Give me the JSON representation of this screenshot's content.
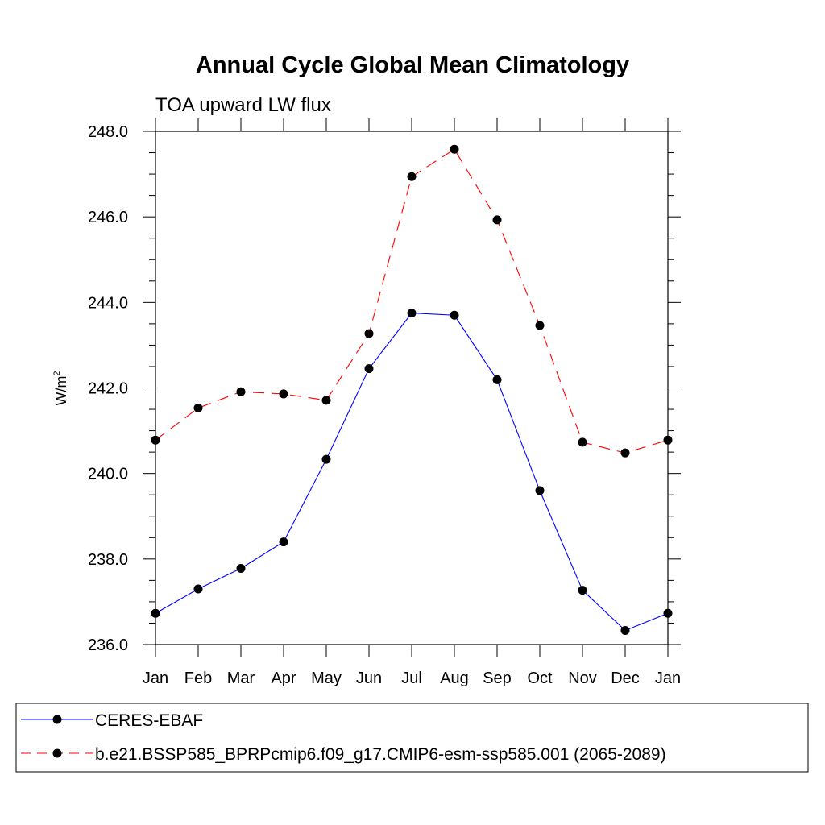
{
  "chart_data": {
    "type": "line",
    "title": "Annual Cycle Global Mean Climatology",
    "subtitle": "TOA upward LW flux",
    "ylabel": "W/m",
    "ylabel_superscript": "2",
    "categories": [
      "Jan",
      "Feb",
      "Mar",
      "Apr",
      "May",
      "Jun",
      "Jul",
      "Aug",
      "Sep",
      "Oct",
      "Nov",
      "Dec",
      "Jan"
    ],
    "ylim": [
      236.0,
      248.0
    ],
    "yticks": [
      "236.0",
      "238.0",
      "240.0",
      "242.0",
      "244.0",
      "246.0",
      "248.0"
    ],
    "series": [
      {
        "name": "CERES-EBAF",
        "color": "#0000ff",
        "dash": "solid",
        "values": [
          236.73,
          237.3,
          237.78,
          238.4,
          240.33,
          242.45,
          243.75,
          243.7,
          242.19,
          239.6,
          237.27,
          236.33,
          236.73
        ]
      },
      {
        "name": "b.e21.BSSP585_BPRPcmip6.f09_g17.CMIP6-esm-ssp585.001 (2065-2089)",
        "color": "#ff0000",
        "dash": "dashed",
        "values": [
          240.78,
          241.53,
          241.91,
          241.86,
          241.71,
          243.27,
          246.94,
          247.58,
          245.93,
          243.46,
          240.73,
          240.48,
          240.78
        ]
      }
    ],
    "legend_position": "bottom"
  }
}
